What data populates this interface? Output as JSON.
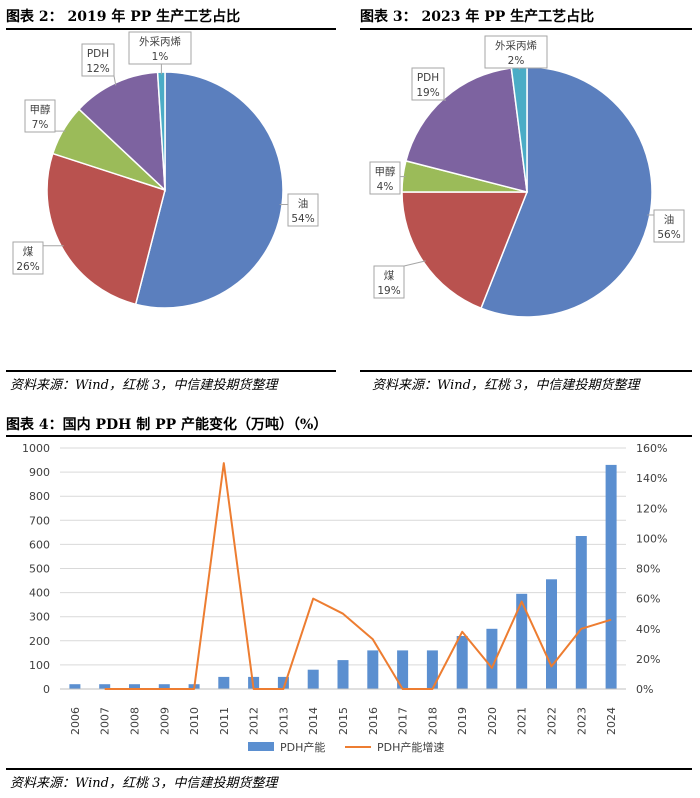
{
  "figures": {
    "fig2": {
      "title": "图表 2：  2019 年 PP 生产工艺占比",
      "source": "资料来源：Wind，红桃 3，中信建投期货整理"
    },
    "fig3": {
      "title": "图表 3：  2023 年 PP 生产工艺占比",
      "source": "资料来源：Wind，红桃 3，中信建投期货整理"
    },
    "fig4": {
      "title": "图表 4：国内 PDH 制 PP 产能变化（万吨）（%）",
      "source": "资料来源：Wind，红桃 3，中信建投期货整理"
    }
  },
  "chart_data": [
    {
      "type": "pie",
      "title": "2019 年 PP 生产工艺占比",
      "slices": [
        {
          "label": "油",
          "pct_label": "54%",
          "value": 54,
          "color": "#5b7fbe"
        },
        {
          "label": "煤",
          "pct_label": "26%",
          "value": 26,
          "color": "#b9524f"
        },
        {
          "label": "甲醇",
          "pct_label": "7%",
          "value": 7,
          "color": "#9bbb59"
        },
        {
          "label": "PDH",
          "pct_label": "12%",
          "value": 12,
          "color": "#7d63a0"
        },
        {
          "label": "外采丙烯",
          "pct_label": "1%",
          "value": 1,
          "color": "#4bacc6"
        }
      ]
    },
    {
      "type": "pie",
      "title": "2023 年 PP 生产工艺占比",
      "slices": [
        {
          "label": "油",
          "pct_label": "56%",
          "value": 56,
          "color": "#5b7fbe"
        },
        {
          "label": "煤",
          "pct_label": "19%",
          "value": 19,
          "color": "#b9524f"
        },
        {
          "label": "甲醇",
          "pct_label": "4%",
          "value": 4,
          "color": "#9bbb59"
        },
        {
          "label": "PDH",
          "pct_label": "19%",
          "value": 19,
          "color": "#7d63a0"
        },
        {
          "label": "外采丙烯",
          "pct_label": "2%",
          "value": 2,
          "color": "#4bacc6"
        }
      ]
    },
    {
      "type": "bar",
      "title": "国内 PDH 制 PP 产能变化（万吨）（%）",
      "categories": [
        "2006",
        "2007",
        "2008",
        "2009",
        "2010",
        "2011",
        "2012",
        "2013",
        "2014",
        "2015",
        "2016",
        "2017",
        "2018",
        "2019",
        "2020",
        "2021",
        "2022",
        "2023",
        "2024"
      ],
      "series": [
        {
          "name": "PDH产能",
          "kind": "bar",
          "axis": "left",
          "color": "#5b8fd0",
          "values": [
            20,
            20,
            20,
            20,
            20,
            50,
            50,
            50,
            80,
            120,
            160,
            160,
            160,
            220,
            250,
            395,
            455,
            635,
            930
          ]
        },
        {
          "name": "PDH产能增速",
          "kind": "line",
          "axis": "right",
          "color": "#ed7d31",
          "values": [
            null,
            0,
            0,
            0,
            0,
            150,
            0,
            0,
            60,
            50,
            33,
            0,
            0,
            38,
            14,
            58,
            15,
            40,
            46
          ]
        }
      ],
      "ylim": [
        0,
        1000
      ],
      "yticks": [
        "0",
        "100",
        "200",
        "300",
        "400",
        "500",
        "600",
        "700",
        "800",
        "900",
        "1000"
      ],
      "y2lim": [
        0,
        160
      ],
      "y2ticks": [
        "0%",
        "20%",
        "40%",
        "60%",
        "80%",
        "100%",
        "120%",
        "140%",
        "160%"
      ],
      "grid": true,
      "legend": "bottom"
    }
  ]
}
